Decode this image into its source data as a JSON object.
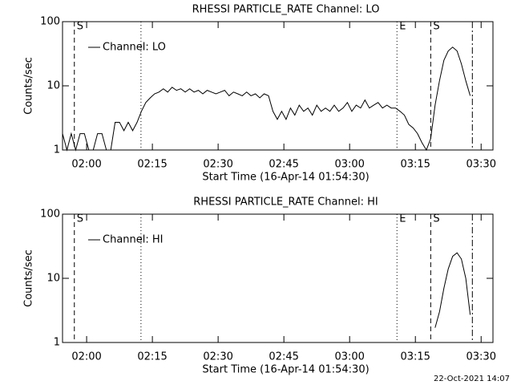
{
  "chart_data": [
    {
      "type": "line",
      "title": "RHESSI PARTICLE_RATE Channel: LO",
      "xlabel": "Start Time (16-Apr-14 01:54:30)",
      "ylabel": "Counts/sec",
      "log_y": true,
      "legend": "upper left",
      "xlim": [
        0,
        98.2
      ],
      "ylim": [
        1,
        100
      ],
      "yticks": [
        1,
        10,
        100
      ],
      "xticks": [
        {
          "value": 5.5,
          "label": "02:00"
        },
        {
          "value": 20.5,
          "label": "02:15"
        },
        {
          "value": 35.5,
          "label": "02:30"
        },
        {
          "value": 50.5,
          "label": "02:45"
        },
        {
          "value": 65.5,
          "label": "03:00"
        },
        {
          "value": 80.5,
          "label": "03:15"
        },
        {
          "value": 95.5,
          "label": "03:30"
        }
      ],
      "annotations": [
        {
          "x": 2.7,
          "style": "dashed",
          "label": "S"
        },
        {
          "x": 17.9,
          "style": "dotted"
        },
        {
          "x": 76.3,
          "style": "dotted",
          "label": "E"
        },
        {
          "x": 84.0,
          "style": "dashed",
          "label": "S"
        },
        {
          "x": 93.5,
          "style": "dash-dot"
        }
      ],
      "x": [
        0,
        1,
        2,
        3,
        4,
        5,
        6,
        7,
        8,
        9,
        10,
        11,
        12,
        13,
        14,
        15,
        16,
        17,
        18,
        19,
        20,
        21,
        22,
        23,
        24,
        25,
        26,
        27,
        28,
        29,
        30,
        31,
        32,
        33,
        34,
        35,
        36,
        37,
        38,
        39,
        40,
        41,
        42,
        43,
        44,
        45,
        46,
        47,
        48,
        49,
        50,
        51,
        52,
        53,
        54,
        55,
        56,
        57,
        58,
        59,
        60,
        61,
        62,
        63,
        64,
        65,
        66,
        67,
        68,
        69,
        70,
        71,
        72,
        73,
        74,
        75,
        76,
        77,
        78,
        79,
        80,
        81,
        82,
        83,
        84,
        85,
        86,
        87,
        88,
        89,
        90,
        91,
        92,
        93
      ],
      "series": [
        {
          "name": "Channel: LO",
          "color": "#000000",
          "values": [
            1.8,
            1,
            1.8,
            1,
            1.8,
            1.8,
            1,
            1,
            1.8,
            1.8,
            1,
            1,
            2.7,
            2.7,
            2,
            2.7,
            2,
            2.7,
            4,
            5.5,
            6.5,
            7.5,
            8,
            9,
            8,
            9.5,
            8.5,
            9,
            8,
            9,
            8,
            8.5,
            7.5,
            8.5,
            8,
            7.5,
            8,
            8.5,
            7,
            8,
            7.5,
            7,
            8,
            7,
            7.5,
            6.5,
            7.5,
            7,
            4,
            3,
            4,
            3,
            4.5,
            3.5,
            5,
            4,
            4.5,
            3.5,
            5,
            4,
            4.5,
            4,
            5,
            4,
            4.5,
            5.5,
            4,
            5,
            4.5,
            6,
            4.5,
            5,
            5.5,
            4.5,
            5,
            4.5,
            4.5,
            4,
            3.5,
            2.5,
            2.2,
            1.8,
            1.3,
            1,
            1.5,
            5,
            12,
            25,
            35,
            40,
            35,
            22,
            12,
            7
          ]
        }
      ]
    },
    {
      "type": "line",
      "title": "RHESSI PARTICLE_RATE Channel: HI",
      "xlabel": "Start Time (16-Apr-14 01:54:30)",
      "ylabel": "Counts/sec",
      "log_y": true,
      "legend": "upper left",
      "xlim": [
        0,
        98.2
      ],
      "ylim": [
        1,
        100
      ],
      "yticks": [
        1,
        10,
        100
      ],
      "xticks": [
        {
          "value": 5.5,
          "label": "02:00"
        },
        {
          "value": 20.5,
          "label": "02:15"
        },
        {
          "value": 35.5,
          "label": "02:30"
        },
        {
          "value": 50.5,
          "label": "02:45"
        },
        {
          "value": 65.5,
          "label": "03:00"
        },
        {
          "value": 80.5,
          "label": "03:15"
        },
        {
          "value": 95.5,
          "label": "03:30"
        }
      ],
      "annotations": [
        {
          "x": 2.7,
          "style": "dashed",
          "label": "S"
        },
        {
          "x": 17.9,
          "style": "dotted"
        },
        {
          "x": 76.3,
          "style": "dotted",
          "label": "E"
        },
        {
          "x": 84.0,
          "style": "dashed",
          "label": "S"
        },
        {
          "x": 93.5,
          "style": "dash-dot"
        }
      ],
      "x": [
        85,
        86,
        87,
        88,
        89,
        90,
        91,
        92,
        93
      ],
      "series": [
        {
          "name": "Channel: HI",
          "color": "#000000",
          "values": [
            1.7,
            3,
            7,
            14,
            22,
            25,
            20,
            10,
            2.7
          ]
        }
      ]
    }
  ],
  "footer": "22-Oct-2021 14:07"
}
